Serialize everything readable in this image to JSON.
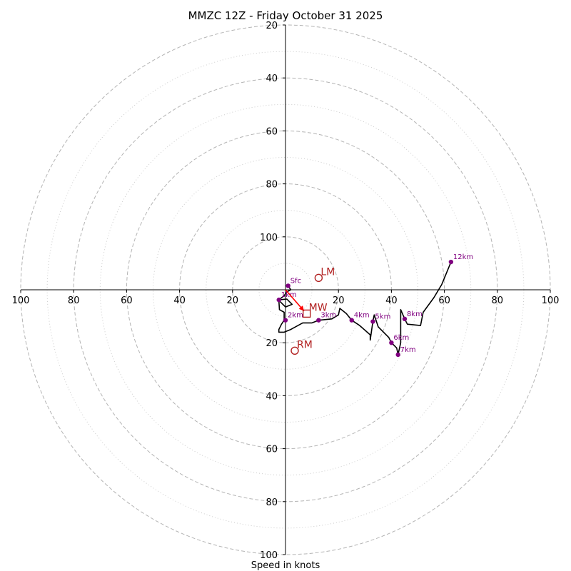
{
  "chart_data": {
    "type": "hodograph",
    "title": "MMZC 12Z - Friday October 31 2025",
    "xlabel": "Speed in knots",
    "max_speed": 100,
    "major_rings": [
      20,
      40,
      60,
      80,
      100
    ],
    "minor_rings": [
      10,
      30,
      50,
      70,
      90
    ],
    "tick_labels": [
      "100",
      "80",
      "60",
      "40",
      "20",
      "20",
      "40",
      "60",
      "80",
      "100"
    ],
    "wind_trace": [
      [
        1.0,
        1.5
      ],
      [
        2.0,
        0.0
      ],
      [
        1.0,
        -0.5
      ],
      [
        0.5,
        -0.8
      ],
      [
        -0.5,
        -2.2
      ],
      [
        -2.5,
        -3.8
      ],
      [
        0.5,
        -3.5
      ],
      [
        2.0,
        -5.0
      ],
      [
        2.5,
        -5.5
      ],
      [
        0.0,
        -6.5
      ],
      [
        -2.5,
        -4.0
      ],
      [
        -2.3,
        -7.5
      ],
      [
        -0.5,
        -8.5
      ],
      [
        -0.5,
        -11.5
      ],
      [
        -1.5,
        -13.0
      ],
      [
        -2.5,
        -15.0
      ],
      [
        -2.5,
        -16.0
      ],
      [
        -0.5,
        -16.0
      ],
      [
        2.0,
        -15.0
      ],
      [
        6.5,
        -12.5
      ],
      [
        10.0,
        -12.5
      ],
      [
        12.5,
        -11.5
      ],
      [
        17.5,
        -11.0
      ],
      [
        20.0,
        -9.5
      ],
      [
        20.5,
        -7.0
      ],
      [
        23.0,
        -9.0
      ],
      [
        25.0,
        -11.5
      ],
      [
        28.0,
        -13.5
      ],
      [
        32.0,
        -17.0
      ],
      [
        32.0,
        -19.0
      ],
      [
        33.0,
        -12.0
      ],
      [
        33.5,
        -9.5
      ],
      [
        35.0,
        -14.0
      ],
      [
        39.0,
        -18.0
      ],
      [
        40.0,
        -20.0
      ],
      [
        42.0,
        -22.0
      ],
      [
        42.5,
        -24.5
      ],
      [
        43.5,
        -20.0
      ],
      [
        43.5,
        -7.5
      ],
      [
        45.0,
        -11.0
      ],
      [
        46.0,
        -13.0
      ],
      [
        51.0,
        -13.5
      ],
      [
        52.0,
        -8.5
      ],
      [
        56.0,
        -3.0
      ],
      [
        59.0,
        2.0
      ],
      [
        62.5,
        10.5
      ]
    ],
    "height_markers": [
      {
        "label": "Sfc",
        "u": 1.0,
        "v": 1.5
      },
      {
        "label": "1km",
        "u": -2.5,
        "v": -3.8
      },
      {
        "label": "2km",
        "u": 0.0,
        "v": -11.5
      },
      {
        "label": "3km",
        "u": 12.5,
        "v": -11.5
      },
      {
        "label": "4km",
        "u": 25.0,
        "v": -11.5
      },
      {
        "label": "5km",
        "u": 33.0,
        "v": -12.0
      },
      {
        "label": "6km",
        "u": 40.0,
        "v": -20.0
      },
      {
        "label": "7km",
        "u": 42.5,
        "v": -24.5
      },
      {
        "label": "8km",
        "u": 45.0,
        "v": -11.0
      },
      {
        "label": "12km",
        "u": 62.5,
        "v": 10.5
      }
    ],
    "storm_motion": [
      {
        "label": "LM",
        "u": 12.5,
        "v": 4.5,
        "marker": "circle"
      },
      {
        "label": "RM",
        "u": 3.5,
        "v": -23.0,
        "marker": "circle"
      },
      {
        "label": "MW",
        "u": 8.0,
        "v": -9.0,
        "marker": "square"
      }
    ],
    "mean_wind_arrow": {
      "from": [
        0.0,
        0.0
      ],
      "to": [
        7.0,
        -8.0
      ]
    },
    "colors": {
      "trace": "#000000",
      "markers": "#800080",
      "storm_motion": "#b22222",
      "arrow": "#ff0000",
      "rings": "#b4b4b4"
    }
  }
}
